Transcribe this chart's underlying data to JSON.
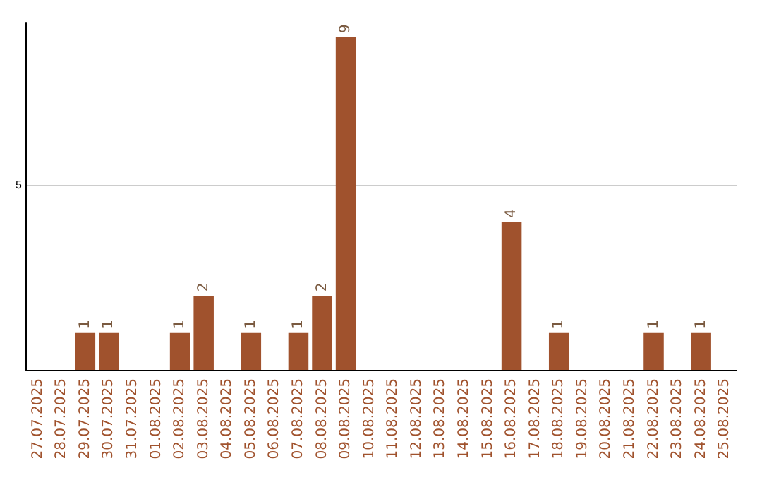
{
  "chart_data": {
    "type": "bar",
    "categories": [
      "27.07.2025",
      "28.07.2025",
      "29.07.2025",
      "30.07.2025",
      "31.07.2025",
      "01.08.2025",
      "02.08.2025",
      "03.08.2025",
      "04.08.2025",
      "05.08.2025",
      "06.08.2025",
      "07.08.2025",
      "08.08.2025",
      "09.08.2025",
      "10.08.2025",
      "11.08.2025",
      "12.08.2025",
      "13.08.2025",
      "14.08.2025",
      "15.08.2025",
      "16.08.2025",
      "17.08.2025",
      "18.08.2025",
      "19.08.2025",
      "20.08.2025",
      "21.08.2025",
      "22.08.2025",
      "23.08.2025",
      "24.08.2025",
      "25.08.2025"
    ],
    "values": [
      0,
      0,
      1,
      1,
      0,
      0,
      1,
      2,
      0,
      1,
      0,
      1,
      2,
      9,
      0,
      0,
      0,
      0,
      0,
      0,
      4,
      0,
      1,
      0,
      0,
      0,
      1,
      0,
      1,
      0
    ],
    "value_labels": [
      null,
      null,
      "1",
      "1",
      null,
      null,
      "1",
      "2",
      null,
      "1",
      null,
      "1",
      "2",
      "9",
      null,
      null,
      null,
      null,
      null,
      null,
      "4",
      null,
      "1",
      null,
      null,
      null,
      "1",
      null,
      "1",
      null
    ],
    "color": "#a0522d",
    "ylim": [
      0,
      9.4
    ],
    "yticks": [
      {
        "value": 0,
        "label": null
      },
      5
    ],
    "grid": "y"
  }
}
